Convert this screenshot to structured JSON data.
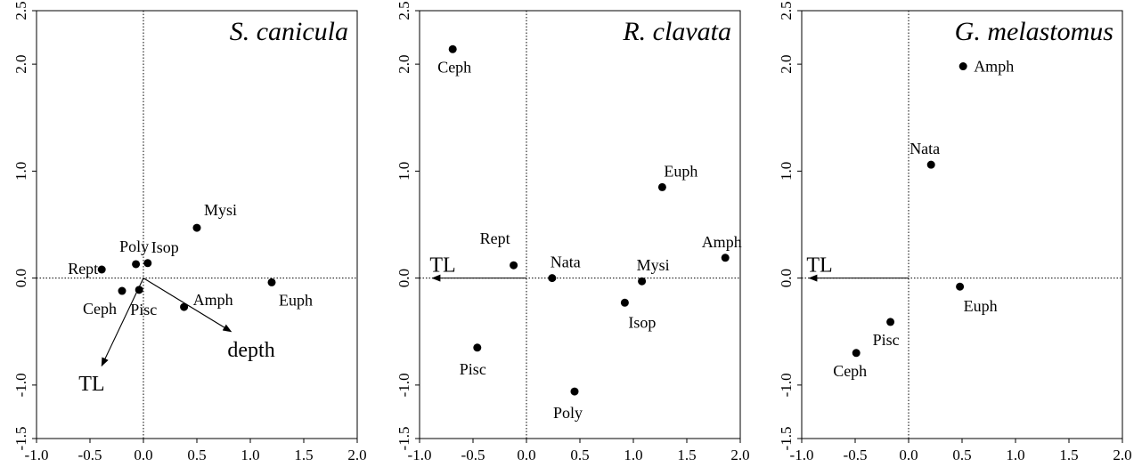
{
  "chart_data": [
    {
      "type": "scatter",
      "title": "S. canicula",
      "xlim": [
        -1.0,
        2.0
      ],
      "ylim": [
        -1.5,
        2.5
      ],
      "x_ticks": [
        "-1.0",
        "-0.5",
        "0.0",
        "0.5",
        "1.0",
        "1.5",
        "2.0"
      ],
      "y_ticks": [
        "-1.5",
        "-1.0",
        "0.0",
        "1.0",
        "2.0",
        "2.5"
      ],
      "points": [
        {
          "label": "Rept",
          "x": -0.39,
          "y": 0.08
        },
        {
          "label": "Poly",
          "x": -0.07,
          "y": 0.13
        },
        {
          "label": "Isop",
          "x": 0.04,
          "y": 0.14
        },
        {
          "label": "Mysi",
          "x": 0.5,
          "y": 0.47
        },
        {
          "label": "Ceph",
          "x": -0.2,
          "y": -0.12
        },
        {
          "label": "Pisc",
          "x": -0.04,
          "y": -0.11
        },
        {
          "label": "Amph",
          "x": 0.38,
          "y": -0.27
        },
        {
          "label": "Euph",
          "x": 1.2,
          "y": -0.04
        }
      ],
      "vectors": [
        {
          "label": "TL",
          "x": -0.39,
          "y": -0.82
        },
        {
          "label": "depth",
          "x": 0.82,
          "y": -0.5
        }
      ]
    },
    {
      "type": "scatter",
      "title": "R. clavata",
      "xlim": [
        -1.0,
        2.0
      ],
      "ylim": [
        -1.5,
        2.5
      ],
      "x_ticks": [
        "-1.0",
        "-0.5",
        "0.0",
        "0.5",
        "1.0",
        "1.5",
        "2.0"
      ],
      "y_ticks": [
        "-1.5",
        "-1.0",
        "0.0",
        "1.0",
        "2.0",
        "2.5"
      ],
      "points": [
        {
          "label": "Ceph",
          "x": -0.69,
          "y": 2.14
        },
        {
          "label": "Euph",
          "x": 1.27,
          "y": 0.85
        },
        {
          "label": "Amph",
          "x": 1.86,
          "y": 0.19
        },
        {
          "label": "Rept",
          "x": -0.12,
          "y": 0.12
        },
        {
          "label": "Nata",
          "x": 0.24,
          "y": 0.0
        },
        {
          "label": "Mysi",
          "x": 1.08,
          "y": -0.03
        },
        {
          "label": "Isop",
          "x": 0.92,
          "y": -0.23
        },
        {
          "label": "Pisc",
          "x": -0.46,
          "y": -0.65
        },
        {
          "label": "Poly",
          "x": 0.45,
          "y": -1.06
        }
      ],
      "vectors": [
        {
          "label": "TL",
          "x": -0.88,
          "y": 0.0
        }
      ]
    },
    {
      "type": "scatter",
      "title": "G. melastomus",
      "xlim": [
        -1.0,
        2.0
      ],
      "ylim": [
        -1.5,
        2.5
      ],
      "x_ticks": [
        "-1.0",
        "-0.5",
        "0.0",
        "0.5",
        "1.0",
        "1.5",
        "2.0"
      ],
      "y_ticks": [
        "-1.5",
        "-1.0",
        "0.0",
        "1.0",
        "2.0",
        "2.5"
      ],
      "points": [
        {
          "label": "Amph",
          "x": 0.51,
          "y": 1.98
        },
        {
          "label": "Nata",
          "x": 0.21,
          "y": 1.06
        },
        {
          "label": "Euph",
          "x": 0.48,
          "y": -0.08
        },
        {
          "label": "Pisc",
          "x": -0.17,
          "y": -0.41
        },
        {
          "label": "Ceph",
          "x": -0.49,
          "y": -0.7
        }
      ],
      "vectors": [
        {
          "label": "TL",
          "x": -0.93,
          "y": 0.0
        }
      ]
    }
  ]
}
